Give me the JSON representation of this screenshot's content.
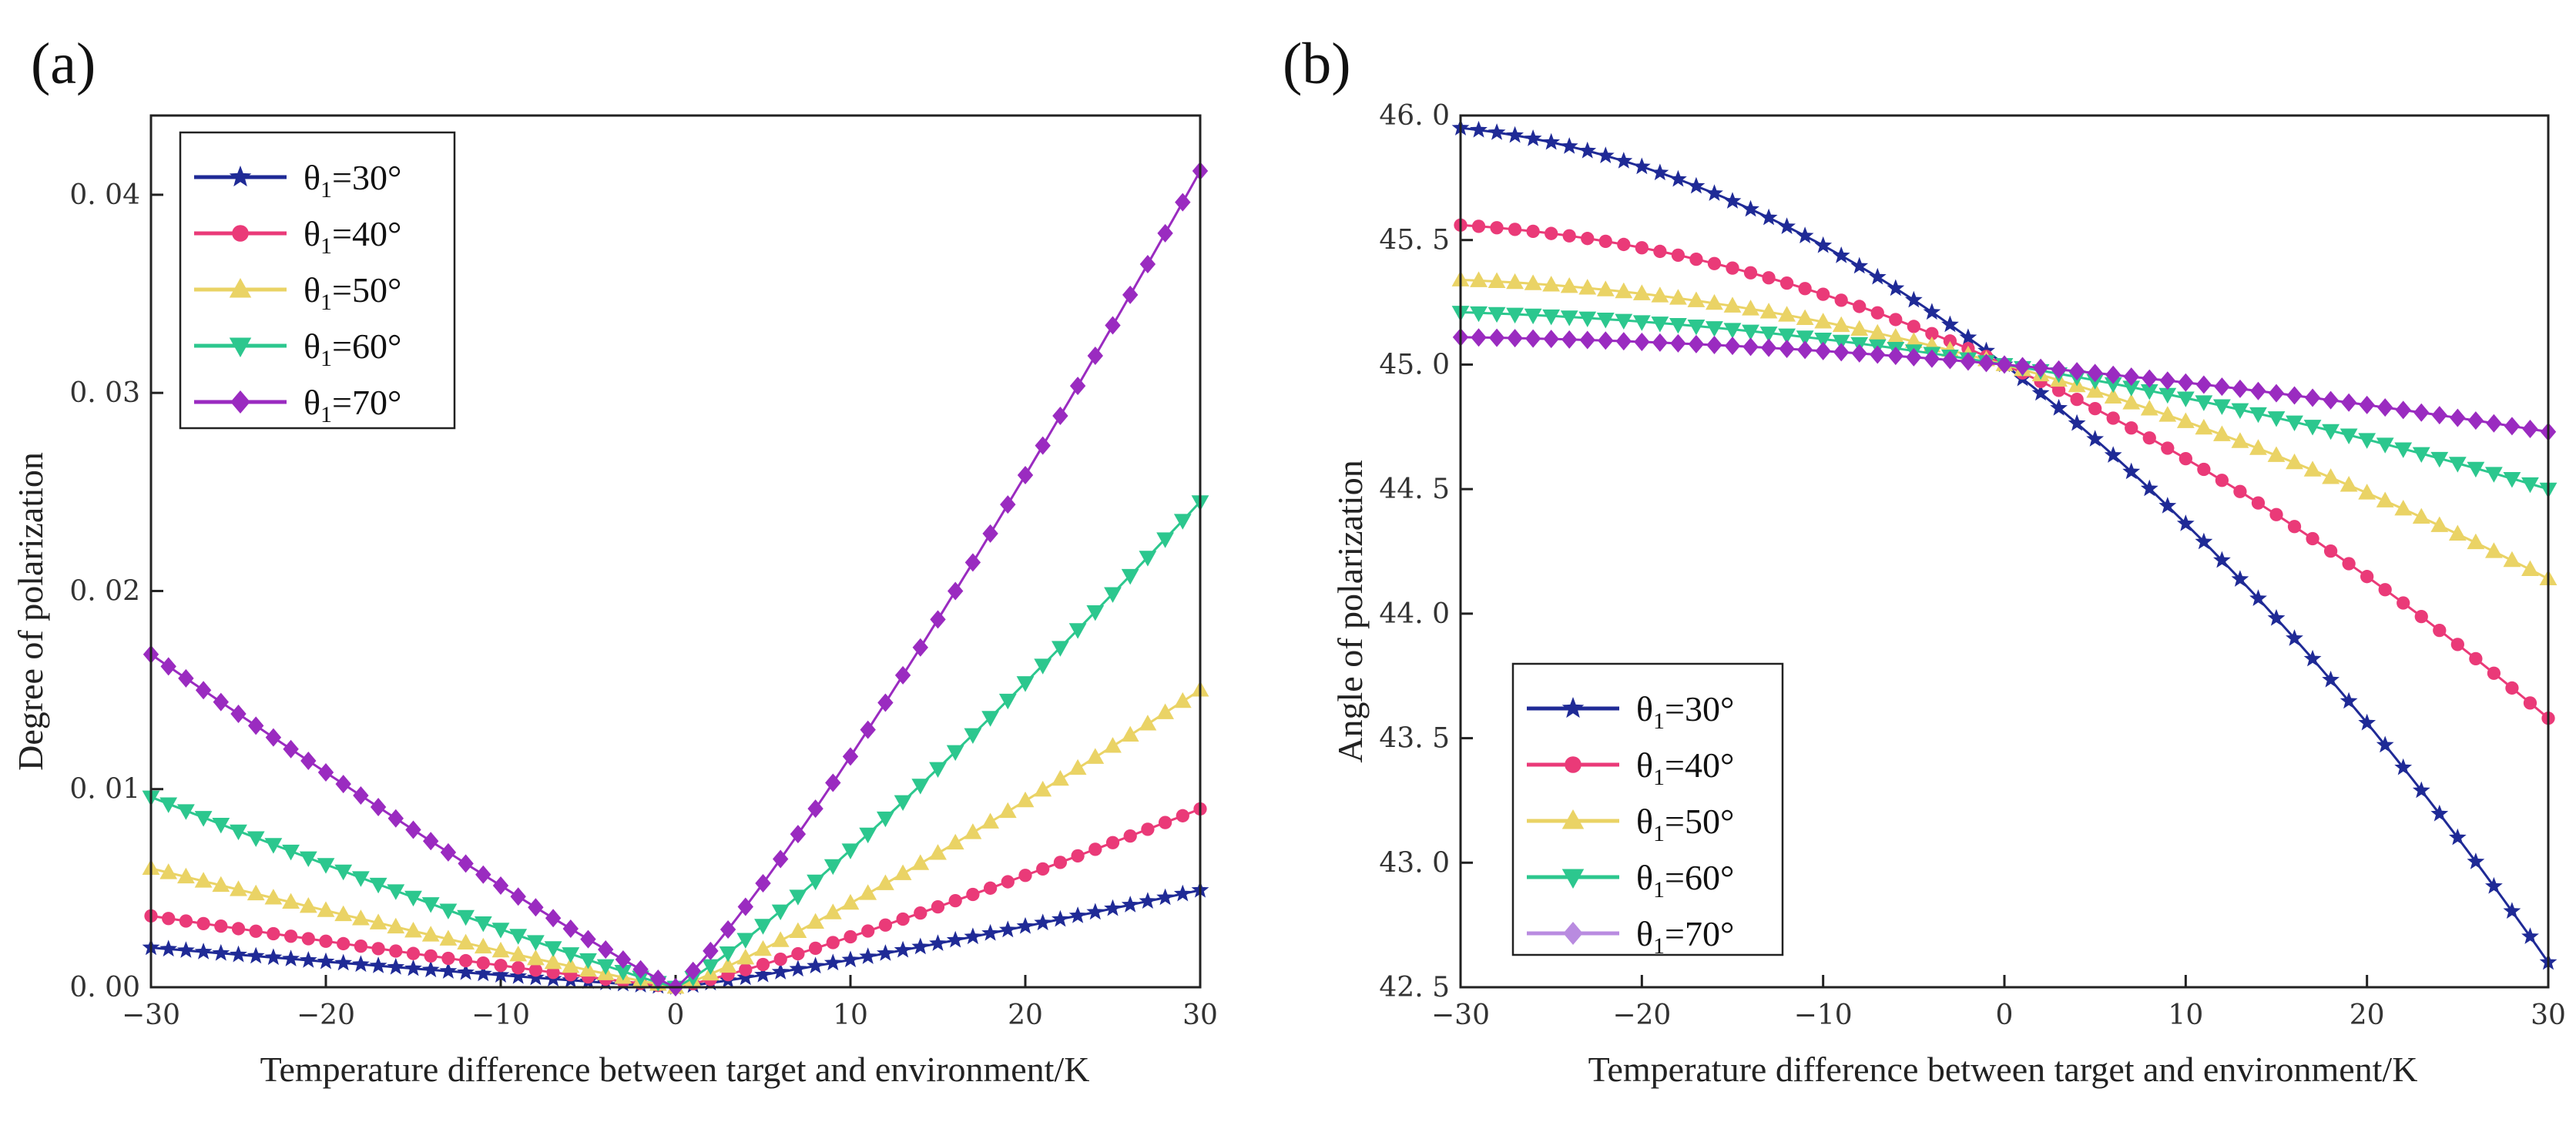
{
  "colors": {
    "30": "#1f2a96",
    "40": "#ea3a78",
    "50": "#ead365",
    "60": "#2cc78e",
    "70": "#9a2bc0"
  },
  "chart_data": [
    {
      "panel_label": "(a)",
      "type": "line",
      "xlabel": "Temperature difference between target and environment/K",
      "ylabel": "Degree of polarization",
      "xlim": [
        -30,
        30
      ],
      "ylim": [
        0,
        0.044
      ],
      "xticks": [
        -30,
        -20,
        -10,
        0,
        10,
        20,
        30
      ],
      "xtick_labels": [
        "−30",
        "−20",
        "−10",
        "0",
        "10",
        "20",
        "30"
      ],
      "yticks": [
        0,
        0.01,
        0.02,
        0.03,
        0.04
      ],
      "ytick_labels": [
        "0. 00",
        "0. 01",
        "0. 02",
        "0. 03",
        "0. 04"
      ],
      "legend": "top-left",
      "grid": false,
      "series": [
        {
          "theta": "30",
          "marker": "star",
          "left_end": 0.002,
          "right_end": 0.0049,
          "left_pow": 1.08,
          "right_pow": 1.15
        },
        {
          "theta": "40",
          "marker": "circle",
          "left_end": 0.0036,
          "right_end": 0.009,
          "left_pow": 1.08,
          "right_pow": 1.15
        },
        {
          "theta": "50",
          "marker": "triangle-up",
          "left_end": 0.006,
          "right_end": 0.015,
          "left_pow": 1.08,
          "right_pow": 1.15
        },
        {
          "theta": "60",
          "marker": "triangle-down",
          "left_end": 0.0096,
          "right_end": 0.0245,
          "left_pow": 1.08,
          "right_pow": 1.15
        },
        {
          "theta": "70",
          "marker": "diamond",
          "left_end": 0.0168,
          "right_end": 0.0412,
          "left_pow": 1.08,
          "right_pow": 1.15
        }
      ],
      "legend_entries": [
        "θ1=30°",
        "θ1=40°",
        "θ1=50°",
        "θ1=60°",
        "θ1=70°"
      ]
    },
    {
      "panel_label": "(b)",
      "type": "line",
      "xlabel": "Temperature difference between target and environment/K",
      "ylabel": "Angle of polarization",
      "xlim": [
        -30,
        30
      ],
      "ylim": [
        42.5,
        46.0
      ],
      "xticks": [
        -30,
        -20,
        -10,
        0,
        10,
        20,
        30
      ],
      "xtick_labels": [
        "−30",
        "−20",
        "−10",
        "0",
        "10",
        "20",
        "30"
      ],
      "yticks": [
        42.5,
        43.0,
        43.5,
        44.0,
        44.5,
        45.0,
        45.5,
        46.0
      ],
      "ytick_labels": [
        "42. 5",
        "43. 0",
        "43. 5",
        "44. 0",
        "44. 5",
        "45. 0",
        "45. 5",
        "46. 0"
      ],
      "legend": "bottom-left",
      "grid": false,
      "series": [
        {
          "theta": "30",
          "marker": "star",
          "y_left": 45.95,
          "y_center": 45.0,
          "y_right": 42.6
        },
        {
          "theta": "40",
          "marker": "circle",
          "y_left": 45.56,
          "y_center": 45.0,
          "y_right": 43.58
        },
        {
          "theta": "50",
          "marker": "triangle-up",
          "y_left": 45.34,
          "y_center": 45.0,
          "y_right": 44.14
        },
        {
          "theta": "60",
          "marker": "triangle-down",
          "y_left": 45.21,
          "y_center": 45.0,
          "y_right": 44.5
        },
        {
          "theta": "70",
          "marker": "diamond",
          "y_left": 45.11,
          "y_center": 45.0,
          "y_right": 44.73
        }
      ],
      "legend_colors_override": {
        "70": "#b98be0"
      },
      "legend_entries": [
        "θ1=30°",
        "θ1=40°",
        "θ1=50°",
        "θ1=60°",
        "θ1=70°"
      ]
    }
  ]
}
